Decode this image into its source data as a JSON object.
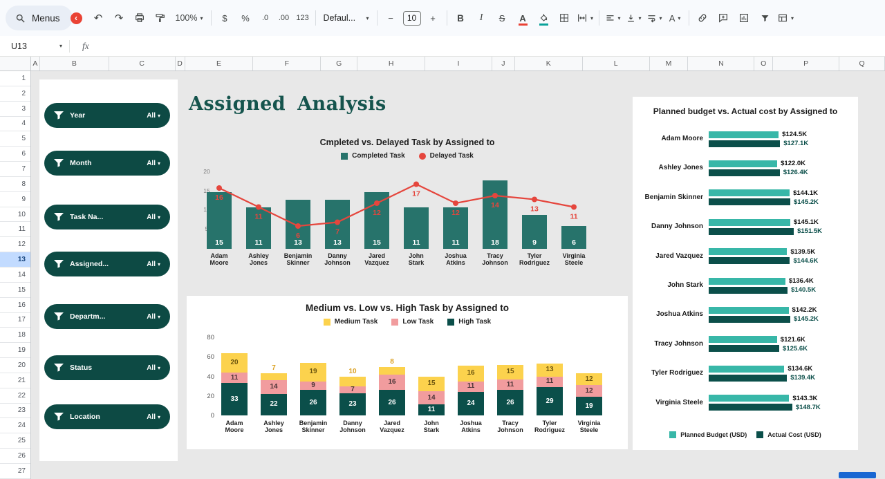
{
  "toolbar": {
    "menus_label": "Menus",
    "zoom_value": "100%",
    "format_currency": "$",
    "format_percent": "%",
    "decimal_decrease": ".0",
    "decimal_increase": ".00",
    "more_formats": "123",
    "font_name": "Defaul...",
    "size_minus": "−",
    "font_size": "10",
    "size_plus": "+",
    "bold": "B",
    "italic": "I",
    "strikethrough": "S",
    "text_color": "A"
  },
  "icons": {
    "undo": "↶",
    "redo": "↷",
    "caret": "▾",
    "collapse": "‹",
    "text_rotation": "A"
  },
  "formula_bar": {
    "cell_reference": "U13",
    "fx_label": "fx"
  },
  "sheet": {
    "columns": [
      "A",
      "B",
      "C",
      "D",
      "E",
      "F",
      "G",
      "H",
      "I",
      "J",
      "K",
      "L",
      "M",
      "N",
      "O",
      "P",
      "Q"
    ],
    "rows": [
      "1",
      "2",
      "3",
      "4",
      "5",
      "6",
      "7",
      "8",
      "9",
      "10",
      "11",
      "12",
      "13",
      "14",
      "15",
      "16",
      "17",
      "18",
      "19",
      "20",
      "21",
      "22",
      "23",
      "24",
      "25",
      "26",
      "27"
    ],
    "selected_row": "13"
  },
  "filter_panel": {
    "items": [
      {
        "label": "Year",
        "value": "All"
      },
      {
        "label": "Month",
        "value": "All"
      },
      {
        "label": "Task Na...",
        "value": "All"
      },
      {
        "label": "Assigned...",
        "value": "All"
      },
      {
        "label": "Departm...",
        "value": "All"
      },
      {
        "label": "Status",
        "value": "All"
      },
      {
        "label": "Location",
        "value": "All"
      }
    ]
  },
  "dashboard": {
    "title": "Assigned Analysis"
  },
  "chart_data": [
    {
      "id": "completed-vs-delayed",
      "type": "bar",
      "subtype": "bar+line-combo",
      "title": "Cmpleted vs. Delayed Task by Assigned to",
      "categories": [
        "Adam Moore",
        "Ashley Jones",
        "Benjamin Skinner",
        "Danny Johnson",
        "Jared Vazquez",
        "John Stark",
        "Joshua Atkins",
        "Tracy Johnson",
        "Tyler Rodriguez",
        "Virginia Steele"
      ],
      "series": [
        {
          "name": "Completed Task",
          "type": "bar",
          "color": "#27736b",
          "values": [
            15,
            11,
            13,
            13,
            15,
            11,
            11,
            18,
            9,
            6
          ]
        },
        {
          "name": "Delayed Task",
          "type": "line",
          "color": "#e5463d",
          "values": [
            16,
            11,
            6,
            7,
            12,
            17,
            12,
            14,
            13,
            11
          ]
        }
      ],
      "ylim": [
        0,
        20
      ],
      "yticks": [
        20,
        15,
        10,
        5
      ],
      "legend_position": "top",
      "grid": false
    },
    {
      "id": "priority-stacked",
      "type": "bar",
      "subtype": "stacked",
      "title": "Medium vs. Low vs. High Task by Assigned to",
      "categories": [
        "Adam Moore",
        "Ashley Jones",
        "Benjamin Skinner",
        "Danny Johnson",
        "Jared Vazquez",
        "John Stark",
        "Joshua Atkins",
        "Tracy Johnson",
        "Tyler Rodriguez",
        "Virginia Steele"
      ],
      "series": [
        {
          "name": "Medium Task",
          "color": "#fcd24d",
          "values": [
            20,
            7,
            19,
            10,
            8,
            15,
            16,
            15,
            13,
            12
          ]
        },
        {
          "name": "Low Task",
          "color": "#f19c9e",
          "values": [
            11,
            14,
            9,
            7,
            16,
            14,
            11,
            11,
            11,
            12
          ]
        },
        {
          "name": "High Task",
          "color": "#0b4f4a",
          "values": [
            33,
            22,
            26,
            23,
            26,
            11,
            24,
            26,
            29,
            19
          ]
        }
      ],
      "ylim": [
        0,
        80
      ],
      "yticks": [
        0,
        20,
        40,
        60,
        80
      ],
      "legend_position": "top",
      "grid": false
    },
    {
      "id": "budget-comparison",
      "type": "bar",
      "subtype": "horizontal-grouped",
      "title": "Planned budget vs. Actual cost by Assigned to",
      "categories": [
        "Adam Moore",
        "Ashley Jones",
        "Benjamin Skinner",
        "Danny Johnson",
        "Jared Vazquez",
        "John Stark",
        "Joshua Atkins",
        "Tracy Johnson",
        "Tyler Rodriguez",
        "Virginia Steele"
      ],
      "series": [
        {
          "name": "Planned Budget (USD)",
          "color": "#38b7a8",
          "values": [
            124.5,
            122.0,
            144.1,
            145.1,
            139.5,
            136.4,
            142.2,
            121.6,
            134.6,
            143.3
          ],
          "labels": [
            "$124.5K",
            "$122.0K",
            "$144.1K",
            "$145.1K",
            "$139.5K",
            "$136.4K",
            "$142.2K",
            "$121.6K",
            "$134.6K",
            "$143.3K"
          ]
        },
        {
          "name": "Actual Cost (USD)",
          "color": "#0b4f4a",
          "values": [
            127.1,
            126.4,
            145.2,
            151.5,
            144.6,
            140.5,
            145.2,
            125.6,
            139.4,
            148.7
          ],
          "labels": [
            "$127.1K",
            "$126.4K",
            "$145.2K",
            "$151.5K",
            "$144.6K",
            "$140.5K",
            "$145.2K",
            "$125.6K",
            "$139.4K",
            "$148.7K"
          ]
        }
      ],
      "xlim": [
        0,
        160
      ],
      "legend_position": "bottom",
      "grid": false
    }
  ],
  "colors": {
    "teal_bar": "#27736b",
    "teal_dark": "#0b4f4a",
    "teal_light": "#38b7a8",
    "red": "#e5463d",
    "yellow": "#fcd24d",
    "pink": "#f19c9e",
    "pill_teal": "#0d4a44",
    "title_teal": "#15544d",
    "scrollbar_blue": "#1967d2"
  }
}
